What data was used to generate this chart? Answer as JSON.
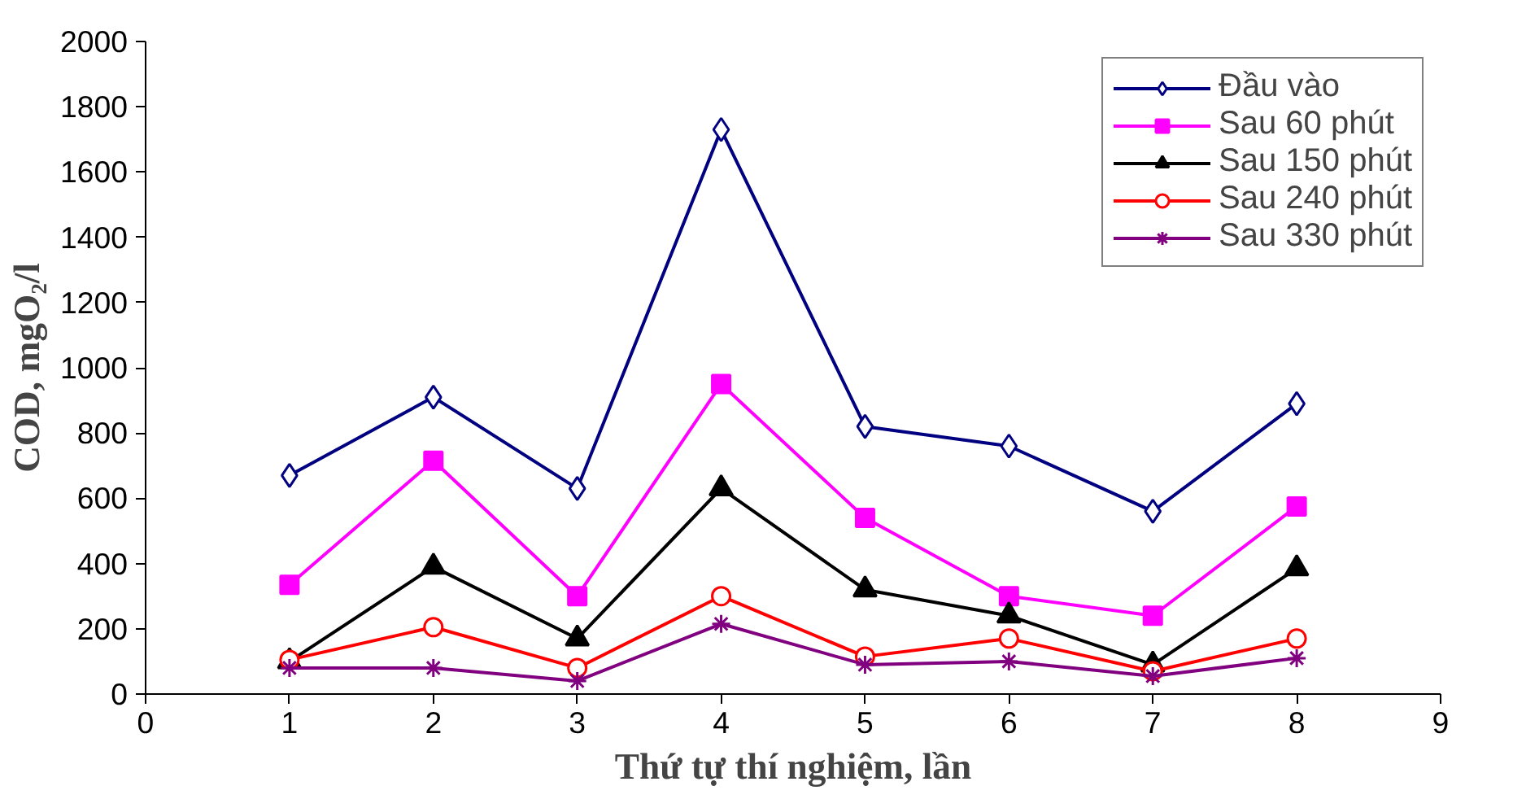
{
  "chart_data": {
    "type": "line",
    "xlabel": "Thứ tự thí nghiệm, lần",
    "ylabel": "COD, mgO₂/l",
    "x": [
      1,
      2,
      3,
      4,
      5,
      6,
      7,
      8
    ],
    "xlim": [
      0,
      9
    ],
    "xticks": [
      0,
      1,
      2,
      3,
      4,
      5,
      6,
      7,
      8,
      9
    ],
    "ylim": [
      0,
      2000
    ],
    "yticks": [
      0,
      200,
      400,
      600,
      800,
      1000,
      1200,
      1400,
      1600,
      1800,
      2000
    ],
    "grid": false,
    "legend": "top right",
    "line_style": "solid",
    "series": [
      {
        "name": "Đầu vào",
        "color": "#000080",
        "marker": "diamond",
        "values": [
          670,
          910,
          630,
          1730,
          820,
          760,
          560,
          890
        ]
      },
      {
        "name": "Sau 60 phút",
        "color": "#ff00ff",
        "marker": "square",
        "values": [
          335,
          715,
          300,
          950,
          540,
          300,
          240,
          575
        ]
      },
      {
        "name": "Sau 150 phút",
        "color": "#000000",
        "marker": "triangle",
        "values": [
          100,
          390,
          170,
          630,
          320,
          240,
          90,
          385
        ]
      },
      {
        "name": "Sau 240 phút",
        "color": "#ff0000",
        "marker": "circle",
        "values": [
          105,
          205,
          80,
          300,
          115,
          170,
          70,
          170
        ]
      },
      {
        "name": "Sau 330 phút",
        "color": "#800080",
        "marker": "cross",
        "values": [
          80,
          80,
          40,
          215,
          90,
          100,
          55,
          110
        ]
      }
    ]
  }
}
